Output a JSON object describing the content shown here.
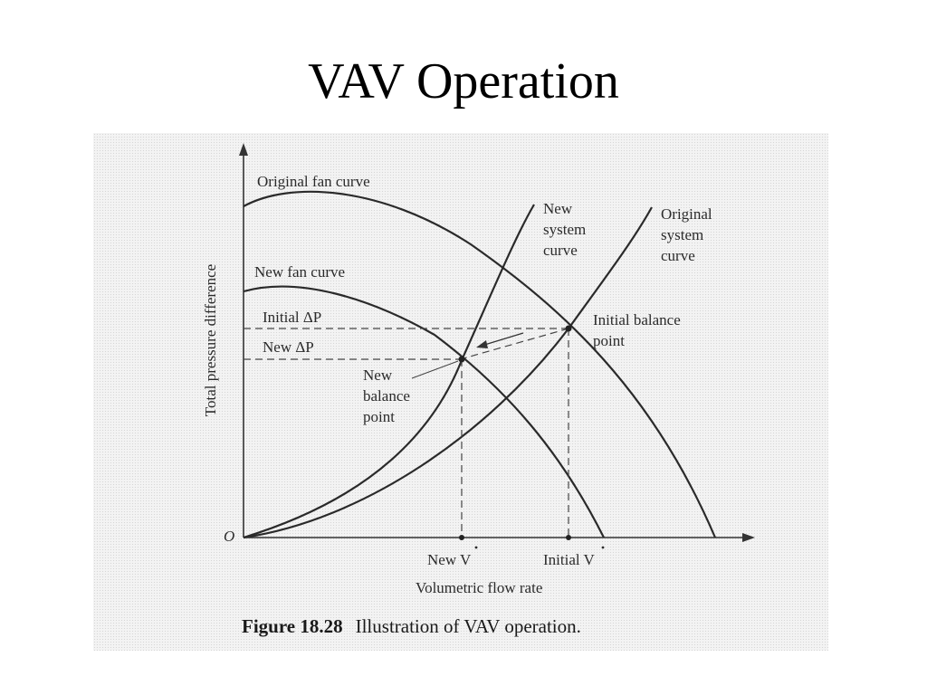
{
  "slide": {
    "title": "VAV Operation"
  },
  "figure": {
    "axis": {
      "y_label": "Total pressure difference",
      "x_label": "Volumetric flow rate",
      "origin": "O"
    },
    "curves": {
      "original_fan": "Original fan curve",
      "new_fan": "New fan curve",
      "new_system": [
        "New",
        "system",
        "curve"
      ],
      "original_system": [
        "Original",
        "system",
        "curve"
      ]
    },
    "pressure_levels": {
      "initial": "Initial ΔP",
      "new": "New ΔP"
    },
    "points": {
      "initial_balance": [
        "Initial balance",
        "point"
      ],
      "new_balance": [
        "New",
        "balance",
        "point"
      ]
    },
    "flow_ticks": {
      "new": "New V",
      "initial": "Initial V"
    },
    "caption": {
      "number": "Figure 18.28",
      "text": "Illustration of VAV operation."
    }
  }
}
